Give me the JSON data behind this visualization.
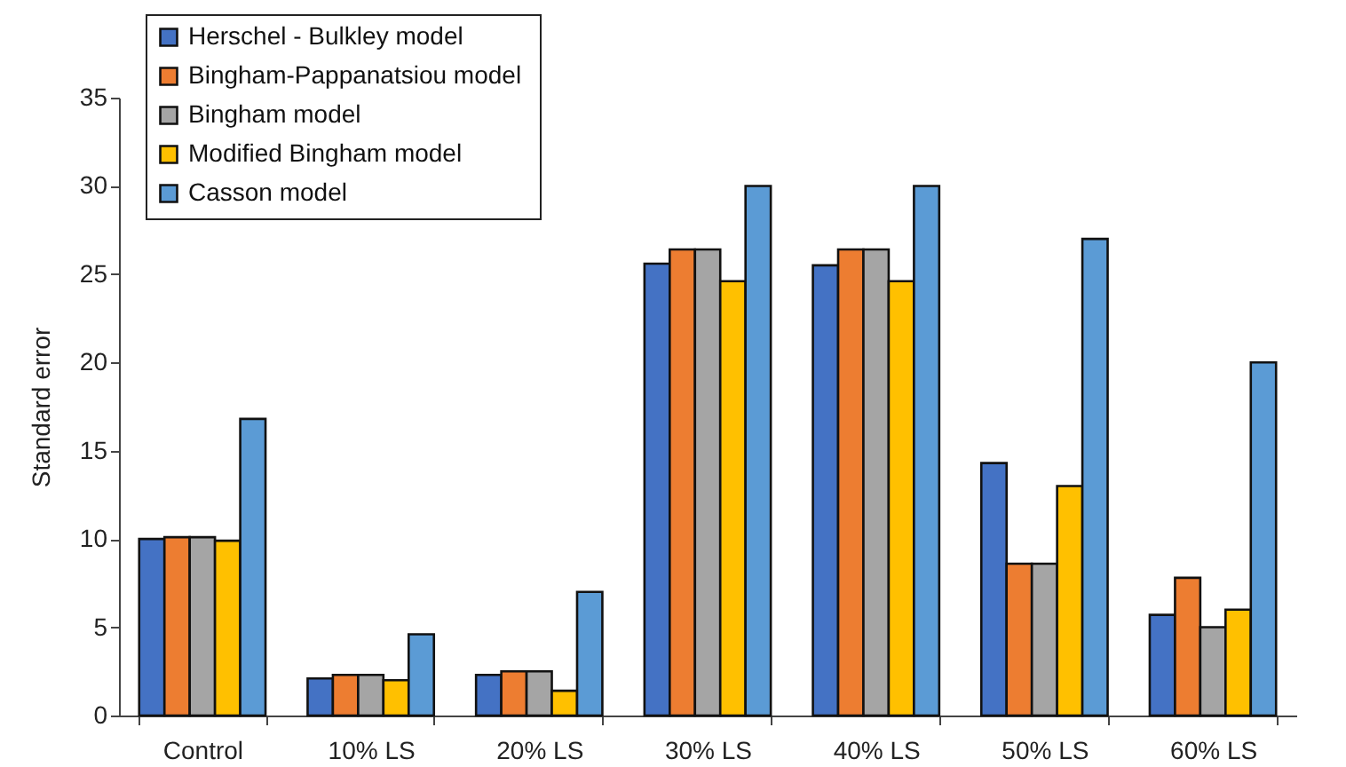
{
  "chart_data": {
    "type": "bar",
    "ylabel": "Standard error",
    "categories": [
      "Control",
      "10% LS",
      "20% LS",
      "30% LS",
      "40% LS",
      "50% LS",
      "60% LS"
    ],
    "series": [
      {
        "name": "Herschel - Bulkley model",
        "color": "#4472c4",
        "values": [
          10.0,
          2.1,
          2.3,
          25.6,
          25.5,
          14.3,
          5.7
        ]
      },
      {
        "name": "Bingham-Pappanatsiou  model",
        "color": "#ed7d31",
        "values": [
          10.1,
          2.3,
          2.5,
          26.4,
          26.4,
          8.6,
          7.8
        ]
      },
      {
        "name": "Bingham model",
        "color": "#a5a5a5",
        "values": [
          10.1,
          2.3,
          2.5,
          26.4,
          26.4,
          8.6,
          5.0
        ]
      },
      {
        "name": "Modified Bingham model",
        "color": "#ffc000",
        "values": [
          9.9,
          2.0,
          1.4,
          24.6,
          24.6,
          13.0,
          6.0
        ]
      },
      {
        "name": "Casson model",
        "color": "#5b9bd5",
        "values": [
          16.8,
          4.6,
          7.0,
          30.0,
          30.0,
          27.0,
          20.0
        ]
      }
    ],
    "ylim": [
      0,
      35
    ],
    "yticks": [
      0,
      5,
      10,
      15,
      20,
      25,
      30,
      35
    ],
    "grid": false,
    "legend": "top left"
  }
}
